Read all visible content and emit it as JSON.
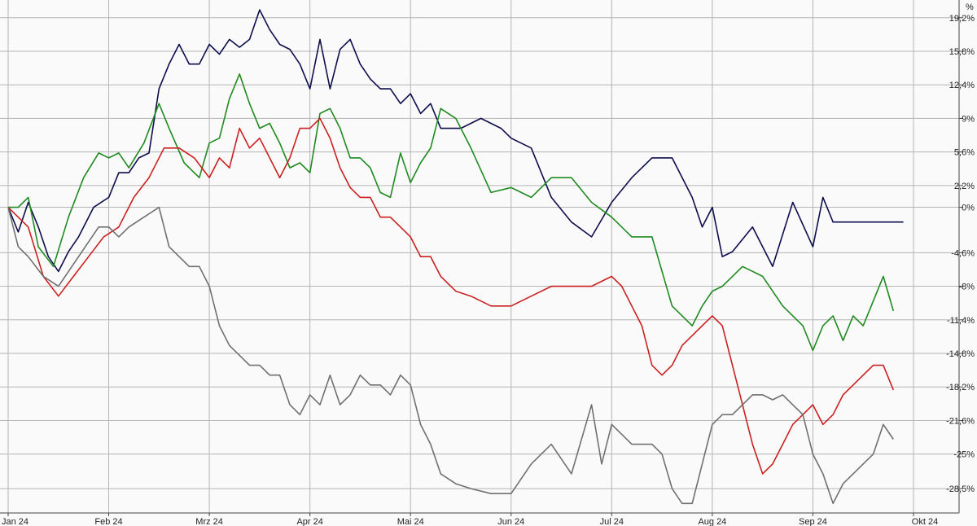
{
  "chart_data": {
    "type": "line",
    "unit_label": "%",
    "grid": true,
    "x_labels": [
      "Jan 24",
      "Feb 24",
      "Mrz 24",
      "Apr 24",
      "Mai 24",
      "Jun 24",
      "Jul 24",
      "Aug 24",
      "Sep 24",
      "Okt 24"
    ],
    "y_ticks": [
      {
        "value": 19.2,
        "label": "19,2%"
      },
      {
        "value": 15.8,
        "label": "15,8%"
      },
      {
        "value": 12.4,
        "label": "12,4%"
      },
      {
        "value": 9,
        "label": "9%"
      },
      {
        "value": 5.6,
        "label": "5,6%"
      },
      {
        "value": 2.2,
        "label": "2,2%"
      },
      {
        "value": 0,
        "label": "0%"
      },
      {
        "value": -4.6,
        "label": "-4,6%"
      },
      {
        "value": -8,
        "label": "-8%"
      },
      {
        "value": -11.4,
        "label": "-11,4%"
      },
      {
        "value": -14.8,
        "label": "-14,8%"
      },
      {
        "value": -18.2,
        "label": "-18,2%"
      },
      {
        "value": -21.6,
        "label": "-21,6%"
      },
      {
        "value": -25,
        "label": "-25%"
      },
      {
        "value": -28.5,
        "label": "-28,5%"
      }
    ],
    "xlim": [
      0,
      9
    ],
    "ylim": [
      -30.8,
      20.5
    ],
    "series": [
      {
        "color": "#0d0d4d",
        "x": [
          0,
          0.1,
          0.2,
          0.3,
          0.4,
          0.5,
          0.6,
          0.7,
          0.85,
          1.0,
          1.1,
          1.2,
          1.3,
          1.4,
          1.5,
          1.6,
          1.7,
          1.8,
          1.9,
          2.0,
          2.1,
          2.2,
          2.3,
          2.4,
          2.5,
          2.6,
          2.7,
          2.8,
          2.9,
          3.0,
          3.1,
          3.2,
          3.3,
          3.4,
          3.5,
          3.6,
          3.7,
          3.8,
          3.9,
          4.0,
          4.1,
          4.2,
          4.3,
          4.5,
          4.7,
          4.9,
          5.0,
          5.2,
          5.4,
          5.6,
          5.8,
          6.0,
          6.2,
          6.4,
          6.6,
          6.8,
          6.9,
          7.0,
          7.1,
          7.2,
          7.4,
          7.6,
          7.8,
          8.0,
          8.1,
          8.2,
          8.3,
          8.4,
          8.5,
          8.6,
          8.7,
          8.8,
          8.9
        ],
        "y": [
          0,
          -2.5,
          0.5,
          -2,
          -5,
          -6.5,
          -4.5,
          -3,
          0,
          1,
          3.5,
          3.5,
          5,
          5.5,
          12,
          14.5,
          16.5,
          14.5,
          14.5,
          16.5,
          15.5,
          17,
          16.2,
          17,
          20,
          18,
          16.5,
          16,
          14.5,
          12,
          17,
          12,
          16,
          17,
          14.5,
          13,
          12,
          12,
          10.5,
          11.5,
          9.5,
          10.5,
          8,
          8,
          9,
          8,
          7,
          6,
          1,
          -1.5,
          -3,
          0.5,
          3,
          5,
          5,
          1,
          -2,
          0,
          -5,
          -4.5,
          -2,
          -6,
          0.5,
          -4,
          1,
          -1.5,
          -1.5,
          -1.5,
          -1.5,
          -1.5,
          -1.5,
          -1.5,
          -1.5
        ]
      },
      {
        "color": "#1f8a1f",
        "x": [
          0,
          0.1,
          0.2,
          0.3,
          0.45,
          0.6,
          0.75,
          0.9,
          1.0,
          1.1,
          1.2,
          1.35,
          1.5,
          1.6,
          1.75,
          1.9,
          2.0,
          2.1,
          2.2,
          2.3,
          2.4,
          2.5,
          2.6,
          2.7,
          2.8,
          2.9,
          3.0,
          3.1,
          3.2,
          3.3,
          3.4,
          3.5,
          3.6,
          3.7,
          3.8,
          3.9,
          4.0,
          4.1,
          4.2,
          4.3,
          4.45,
          4.6,
          4.8,
          5.0,
          5.2,
          5.4,
          5.6,
          5.8,
          6.0,
          6.2,
          6.4,
          6.6,
          6.8,
          6.9,
          7.0,
          7.1,
          7.3,
          7.5,
          7.7,
          7.9,
          8.0,
          8.1,
          8.2,
          8.3,
          8.4,
          8.5,
          8.6,
          8.7,
          8.8
        ],
        "y": [
          0,
          0,
          1,
          -4,
          -6,
          -1,
          3,
          5.5,
          5,
          5.5,
          4,
          6.5,
          10.5,
          8,
          4.5,
          3,
          6.5,
          7,
          11,
          13.5,
          10.5,
          8,
          8.5,
          6.5,
          4,
          4.5,
          3.5,
          9.5,
          10,
          8,
          5,
          5,
          4,
          1.5,
          1,
          5.5,
          2.5,
          4.5,
          6,
          10,
          9,
          6,
          1.5,
          2,
          1,
          3,
          3,
          0.5,
          -1,
          -3,
          -3,
          -10,
          -12,
          -10,
          -8.5,
          -8,
          -6,
          -7,
          -10,
          -12,
          -14.5,
          -12,
          -11,
          -13.5,
          -11,
          -12,
          -9.5,
          -7,
          -10.5
        ]
      },
      {
        "color": "#cc1f1f",
        "x": [
          0,
          0.1,
          0.2,
          0.35,
          0.5,
          0.65,
          0.8,
          0.95,
          1.1,
          1.25,
          1.4,
          1.55,
          1.7,
          1.85,
          2.0,
          2.1,
          2.2,
          2.3,
          2.4,
          2.5,
          2.6,
          2.7,
          2.8,
          2.9,
          3.0,
          3.1,
          3.2,
          3.3,
          3.4,
          3.5,
          3.6,
          3.7,
          3.8,
          3.9,
          4.0,
          4.1,
          4.2,
          4.3,
          4.45,
          4.6,
          4.8,
          5.0,
          5.2,
          5.4,
          5.6,
          5.8,
          6.0,
          6.1,
          6.2,
          6.3,
          6.4,
          6.5,
          6.6,
          6.7,
          6.8,
          6.9,
          7.0,
          7.1,
          7.2,
          7.3,
          7.4,
          7.5,
          7.6,
          7.7,
          7.8,
          7.9,
          8.0,
          8.1,
          8.2,
          8.3,
          8.4,
          8.5,
          8.6,
          8.7,
          8.8
        ],
        "y": [
          0,
          -1,
          -2,
          -7,
          -9,
          -7,
          -5,
          -3,
          -2,
          1,
          3,
          6,
          6,
          5,
          3,
          5,
          4,
          8,
          6,
          7,
          5,
          3,
          5,
          8,
          8,
          9,
          7,
          4,
          2,
          1,
          1,
          -1,
          -1,
          -2,
          -3,
          -5,
          -5,
          -7,
          -8.5,
          -9,
          -10,
          -10,
          -9,
          -8,
          -8,
          -8,
          -7,
          -8,
          -10,
          -12,
          -16,
          -17,
          -16,
          -14,
          -13,
          -12,
          -11,
          -12,
          -16,
          -20,
          -24,
          -27,
          -26,
          -24,
          -22,
          -21,
          -20,
          -22,
          -21,
          -19,
          -18,
          -17,
          -16,
          -16,
          -18.5
        ]
      },
      {
        "color": "#707070",
        "x": [
          0,
          0.1,
          0.2,
          0.35,
          0.5,
          0.7,
          0.9,
          1.0,
          1.1,
          1.2,
          1.35,
          1.5,
          1.6,
          1.8,
          1.9,
          2.0,
          2.1,
          2.2,
          2.3,
          2.4,
          2.5,
          2.6,
          2.7,
          2.8,
          2.9,
          3.0,
          3.1,
          3.2,
          3.3,
          3.4,
          3.5,
          3.6,
          3.7,
          3.8,
          3.9,
          4.0,
          4.1,
          4.2,
          4.3,
          4.45,
          4.6,
          4.8,
          5.0,
          5.2,
          5.4,
          5.6,
          5.8,
          5.9,
          6.0,
          6.1,
          6.2,
          6.3,
          6.4,
          6.5,
          6.6,
          6.7,
          6.8,
          6.9,
          7.0,
          7.1,
          7.2,
          7.3,
          7.4,
          7.5,
          7.6,
          7.7,
          7.8,
          7.9,
          8.0,
          8.1,
          8.2,
          8.3,
          8.4,
          8.5,
          8.6,
          8.7,
          8.8
        ],
        "y": [
          0,
          -4,
          -5,
          -7,
          -8,
          -5,
          -2,
          -2,
          -3,
          -2,
          -1,
          0,
          -4,
          -6,
          -6,
          -8,
          -12,
          -14,
          -15,
          -16,
          -16,
          -17,
          -17,
          -20,
          -21,
          -19,
          -20,
          -17,
          -20,
          -19,
          -17,
          -18,
          -18,
          -19,
          -17,
          -18,
          -22,
          -24,
          -27,
          -28,
          -28.5,
          -29,
          -29,
          -26,
          -24,
          -27,
          -20,
          -26,
          -22,
          -23,
          -24,
          -24,
          -24,
          -25,
          -28.5,
          -30,
          -30,
          -26,
          -22,
          -21,
          -21,
          -20,
          -19,
          -19,
          -19.5,
          -19,
          -20,
          -21,
          -25,
          -27,
          -30,
          -28,
          -27,
          -26,
          -25,
          -22,
          -23.5
        ]
      }
    ]
  }
}
